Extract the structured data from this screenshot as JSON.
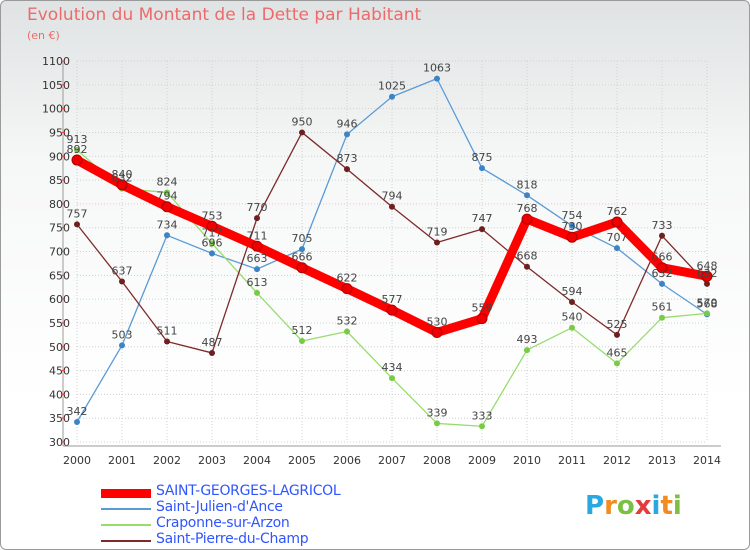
{
  "title": "Evolution du Montant de la Dette par Habitant",
  "unit": "(en €)",
  "logo": {
    "text": "Proxiti",
    "colors": [
      "#2aa8e0",
      "#f28c1e",
      "#7bc043",
      "#e23c3c",
      "#2aa8e0",
      "#f28c1e",
      "#7bc043"
    ]
  },
  "chart_data": {
    "type": "line",
    "title": "Evolution du Montant de la Dette par Habitant",
    "ylabel": "(en €)",
    "xlabel": "",
    "ylim": [
      300,
      1100
    ],
    "yticks": [
      300,
      350,
      400,
      450,
      500,
      550,
      600,
      650,
      700,
      750,
      800,
      850,
      900,
      950,
      1000,
      1050,
      1100
    ],
    "x": [
      "2000",
      "2001",
      "2002",
      "2003",
      "2004",
      "2005",
      "2006",
      "2007",
      "2008",
      "2009",
      "2010",
      "2011",
      "2012",
      "2013",
      "2014"
    ],
    "grid": true,
    "legend": "bottom-left",
    "series": [
      {
        "name": "Saint-Julien-d'Ance",
        "color": "#5b9bd5",
        "marker": "#3d84c6",
        "values": [
          342,
          503,
          734,
          696,
          663,
          705,
          946,
          1025,
          1063,
          875,
          818,
          754,
          707,
          632,
          568
        ]
      },
      {
        "name": "Craponne-sur-Arzon",
        "color": "#98dc6e",
        "marker": "#77cc44",
        "values": [
          913,
          832,
          824,
          717,
          613,
          512,
          532,
          434,
          339,
          333,
          493,
          540,
          465,
          561,
          570
        ]
      },
      {
        "name": "Saint-Pierre-du-Champ",
        "color": "#7d2a2a",
        "marker": "#6e1f1f",
        "values": [
          757,
          637,
          511,
          487,
          770,
          950,
          873,
          794,
          719,
          747,
          668,
          594,
          525,
          733,
          632
        ]
      },
      {
        "name": "SAINT-GEORGES-LAGRICOL",
        "color": "#ff0000",
        "marker": "#ee0000",
        "values": [
          892,
          840,
          794,
          753,
          711,
          666,
          622,
          577,
          530,
          559,
          768,
          730,
          762,
          666,
          648
        ]
      }
    ]
  }
}
